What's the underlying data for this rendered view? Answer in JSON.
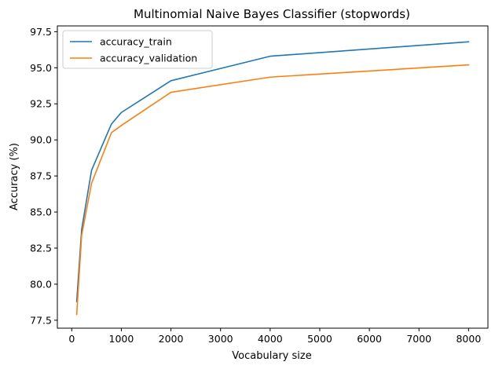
{
  "chart_data": {
    "type": "line",
    "title": "Multinomial Naive Bayes Classifier (stopwords)",
    "xlabel": "Vocabulary size",
    "ylabel": "Accuracy (%)",
    "x": [
      100,
      200,
      400,
      800,
      1000,
      2000,
      4000,
      8000
    ],
    "xlim": [
      -290,
      8390
    ],
    "ylim": [
      76.95,
      97.9
    ],
    "xticks": [
      0,
      1000,
      2000,
      3000,
      4000,
      5000,
      6000,
      7000,
      8000
    ],
    "xtick_labels": [
      "0",
      "1000",
      "2000",
      "3000",
      "4000",
      "5000",
      "6000",
      "7000",
      "8000"
    ],
    "yticks": [
      77.5,
      80.0,
      82.5,
      85.0,
      87.5,
      90.0,
      92.5,
      95.0,
      97.5
    ],
    "ytick_labels": [
      "77.5",
      "80.0",
      "82.5",
      "85.0",
      "87.5",
      "90.0",
      "92.5",
      "95.0",
      "97.5"
    ],
    "grid": false,
    "legend_position": "top-left",
    "series": [
      {
        "name": "accuracy_train",
        "color": "#1f77b4",
        "values": [
          78.8,
          83.8,
          87.9,
          91.1,
          91.9,
          94.1,
          95.8,
          96.8
        ]
      },
      {
        "name": "accuracy_validation",
        "color": "#ff7f0e",
        "values": [
          77.9,
          83.4,
          87.0,
          90.5,
          91.0,
          93.3,
          94.35,
          95.2
        ]
      }
    ]
  }
}
